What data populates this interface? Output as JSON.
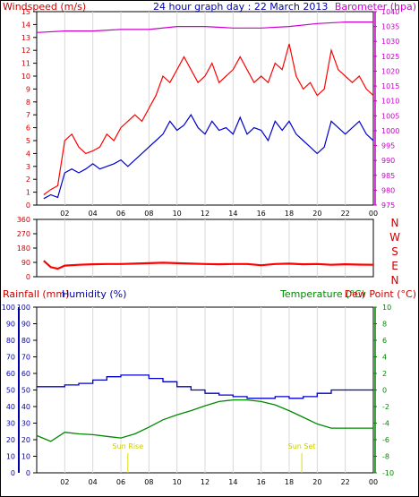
{
  "colors": {
    "wind": "#ff0000",
    "gust": "#ff0000",
    "wind_avg": "#0000cc",
    "barometer": "#cc00cc",
    "direction": "#ff0000",
    "humidity": "#0000cc",
    "temperature": "#008800",
    "dewpoint": "#cc0000",
    "rain": "#cc0000",
    "sun": "#dddd00",
    "grid": "#d8d8d8",
    "frame": "#000000"
  },
  "chart_data": [
    {
      "type": "line",
      "title": "24 hour graph day : 22 March 2013",
      "ylabel": "Windspeed (m/s)",
      "y2label": "Barometer (hpa)",
      "ylim": [
        0,
        15
      ],
      "y2lim": [
        975,
        1040
      ],
      "yticks": [
        "0",
        "1",
        "2",
        "3",
        "4",
        "5",
        "6",
        "7",
        "8",
        "9",
        "10",
        "11",
        "12",
        "13",
        "14",
        "15"
      ],
      "y2ticks": [
        "975",
        "980",
        "985",
        "990",
        "995",
        "1000",
        "1005",
        "1010",
        "1015",
        "1020",
        "1025",
        "1030",
        "1035",
        "1040"
      ],
      "xticks": [
        "02",
        "04",
        "06",
        "08",
        "10",
        "12",
        "14",
        "16",
        "18",
        "20",
        "22",
        "00"
      ],
      "series": [
        {
          "key": "gust",
          "axis": "left",
          "x": [
            0.5,
            1,
            1.5,
            2,
            2.5,
            3,
            3.5,
            4,
            4.5,
            5,
            5.5,
            6,
            6.5,
            7,
            7.5,
            8,
            8.5,
            9,
            9.5,
            10,
            10.5,
            11,
            11.5,
            12,
            12.5,
            13,
            13.5,
            14,
            14.5,
            15,
            15.5,
            16,
            16.5,
            17,
            17.5,
            18,
            18.5,
            19,
            19.5,
            20,
            20.5,
            21,
            21.5,
            22,
            22.5,
            23,
            23.5,
            24
          ],
          "y": [
            0.8,
            1.2,
            1.5,
            5.0,
            5.5,
            4.5,
            4.0,
            4.2,
            4.5,
            5.5,
            5.0,
            6.0,
            6.5,
            7.0,
            6.5,
            7.5,
            8.5,
            10.0,
            9.5,
            10.5,
            11.5,
            10.5,
            9.5,
            10.0,
            11.0,
            9.5,
            10.0,
            10.5,
            11.5,
            10.5,
            9.5,
            10.0,
            9.5,
            11.0,
            10.5,
            12.5,
            10.0,
            9.0,
            9.5,
            8.5,
            9.0,
            12.0,
            10.5,
            10.0,
            9.5,
            10.0,
            9.0,
            8.5
          ]
        },
        {
          "key": "wind_avg",
          "axis": "left",
          "x": [
            0.5,
            1,
            1.5,
            2,
            2.5,
            3,
            3.5,
            4,
            4.5,
            5,
            5.5,
            6,
            6.5,
            7,
            7.5,
            8,
            8.5,
            9,
            9.5,
            10,
            10.5,
            11,
            11.5,
            12,
            12.5,
            13,
            13.5,
            14,
            14.5,
            15,
            15.5,
            16,
            16.5,
            17,
            17.5,
            18,
            18.5,
            19,
            19.5,
            20,
            20.5,
            21,
            21.5,
            22,
            22.5,
            23,
            23.5,
            24
          ],
          "y": [
            0.5,
            0.8,
            0.6,
            2.5,
            2.8,
            2.5,
            2.8,
            3.2,
            2.8,
            3.0,
            3.2,
            3.5,
            3.0,
            3.5,
            4.0,
            4.5,
            5.0,
            5.5,
            6.5,
            5.8,
            6.2,
            7.0,
            6.0,
            5.5,
            6.5,
            5.8,
            6.0,
            5.5,
            6.8,
            5.5,
            6.0,
            5.8,
            5.0,
            6.5,
            5.8,
            6.5,
            5.5,
            5.0,
            4.5,
            4.0,
            4.5,
            6.5,
            6.0,
            5.5,
            6.0,
            6.5,
            5.5,
            5.0
          ]
        },
        {
          "key": "barometer",
          "axis": "right",
          "x": [
            0,
            2,
            4,
            6,
            8,
            10,
            12,
            14,
            16,
            18,
            20,
            22,
            24
          ],
          "y": [
            1033,
            1033.5,
            1033.5,
            1034,
            1034,
            1035,
            1035,
            1034.5,
            1034.5,
            1035,
            1036,
            1036.5,
            1036.5
          ]
        }
      ]
    },
    {
      "type": "scatter",
      "ylabel_ticks": [
        "0",
        "90",
        "180",
        "270",
        "360"
      ],
      "compass_labels": [
        "N",
        "W",
        "S",
        "E",
        "N"
      ],
      "ylim": [
        0,
        360
      ],
      "xticks": [],
      "series": [
        {
          "key": "direction",
          "x": [
            0.5,
            1,
            1.5,
            2,
            3,
            4,
            5,
            6,
            7,
            8,
            9,
            10,
            11,
            12,
            13,
            14,
            15,
            16,
            17,
            18,
            19,
            20,
            21,
            22,
            23,
            24
          ],
          "y": [
            100,
            60,
            50,
            70,
            75,
            78,
            80,
            80,
            82,
            85,
            88,
            85,
            82,
            80,
            78,
            80,
            80,
            72,
            80,
            82,
            78,
            80,
            75,
            78,
            76,
            75
          ]
        }
      ]
    },
    {
      "type": "line",
      "ylabel": "Rainfall (mm)",
      "ylabel2": "Humidity (%)",
      "y2label": "Temperature (°C)",
      "y2label2": "Dew Point (°C)",
      "ylim": [
        0,
        100
      ],
      "y2lim": [
        -10,
        10
      ],
      "yticks": [
        "0",
        "10",
        "20",
        "30",
        "40",
        "50",
        "60",
        "70",
        "80",
        "90",
        "100"
      ],
      "y2ticks": [
        "-10",
        "-8",
        "-6",
        "-4",
        "-2",
        "0",
        "2",
        "4",
        "6",
        "8",
        "10"
      ],
      "xticks": [
        "02",
        "04",
        "06",
        "08",
        "10",
        "12",
        "14",
        "16",
        "18",
        "20",
        "22",
        "00"
      ],
      "annotations": [
        {
          "label": "Sun Rise",
          "x": 6.5
        },
        {
          "label": "Sun Set",
          "x": 18.9
        }
      ],
      "series": [
        {
          "key": "humidity",
          "axis": "left",
          "x": [
            0,
            1,
            2,
            3,
            4,
            5,
            6,
            7,
            8,
            9,
            10,
            11,
            12,
            13,
            14,
            15,
            16,
            17,
            18,
            19,
            20,
            21,
            22,
            23,
            24
          ],
          "y": [
            52,
            52,
            53,
            54,
            56,
            58,
            59,
            59,
            57,
            55,
            52,
            50,
            48,
            47,
            46,
            45,
            45,
            46,
            45,
            46,
            48,
            50,
            50,
            50,
            50
          ]
        },
        {
          "key": "temperature",
          "axis": "right",
          "x": [
            0,
            1,
            2,
            3,
            4,
            5,
            6,
            7,
            8,
            9,
            10,
            11,
            12,
            13,
            14,
            15,
            16,
            17,
            18,
            19,
            20,
            21,
            22,
            23,
            24
          ],
          "y": [
            -5.5,
            -6.2,
            -5.1,
            -5.3,
            -5.4,
            -5.6,
            -5.8,
            -5.3,
            -4.5,
            -3.6,
            -3.0,
            -2.5,
            -1.9,
            -1.4,
            -1.2,
            -1.2,
            -1.4,
            -1.8,
            -2.5,
            -3.3,
            -4.1,
            -4.6,
            -4.6,
            -4.6,
            -4.6
          ]
        }
      ]
    }
  ]
}
